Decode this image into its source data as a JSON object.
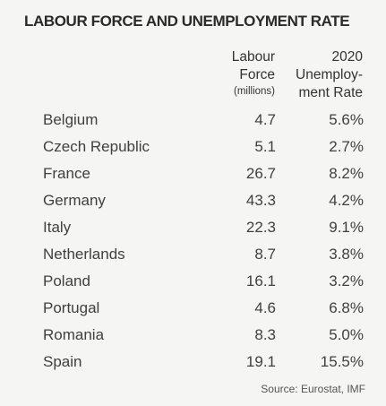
{
  "chart_data": {
    "type": "table",
    "title": "LABOUR FORCE AND UNEMPLOYMENT RATE",
    "columns": [
      {
        "lines": [
          "Labour",
          "Force"
        ],
        "unit": "(millions)"
      },
      {
        "lines": [
          "2020",
          "Unemploy-",
          "ment Rate"
        ],
        "unit": ""
      }
    ],
    "rows": [
      {
        "country": "Belgium",
        "labour_force": "4.7",
        "unemployment_rate": "5.6%"
      },
      {
        "country": "Czech Republic",
        "labour_force": "5.1",
        "unemployment_rate": "2.7%"
      },
      {
        "country": "France",
        "labour_force": "26.7",
        "unemployment_rate": "8.2%"
      },
      {
        "country": "Germany",
        "labour_force": "43.3",
        "unemployment_rate": "4.2%"
      },
      {
        "country": "Italy",
        "labour_force": "22.3",
        "unemployment_rate": "9.1%"
      },
      {
        "country": "Netherlands",
        "labour_force": "8.7",
        "unemployment_rate": "3.8%"
      },
      {
        "country": "Poland",
        "labour_force": "16.1",
        "unemployment_rate": "3.2%"
      },
      {
        "country": "Portugal",
        "labour_force": "4.6",
        "unemployment_rate": "6.8%"
      },
      {
        "country": "Romania",
        "labour_force": "8.3",
        "unemployment_rate": "5.0%"
      },
      {
        "country": "Spain",
        "labour_force": "19.1",
        "unemployment_rate": "15.5%"
      }
    ],
    "source": "Source: Eurostat, IMF"
  }
}
